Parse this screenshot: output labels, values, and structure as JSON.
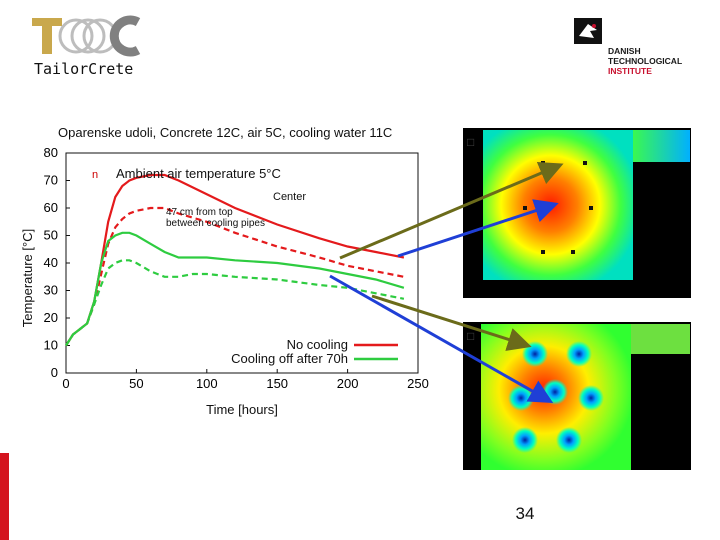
{
  "logos": {
    "left_brand": "TailorCrete",
    "right_lines": [
      "DANISH",
      "TECHNOLOGICAL",
      "INSTITUTE"
    ]
  },
  "page_number": "34",
  "colors": {
    "no_cooling": "#e41a1c",
    "cooling_off": "#2ecc40",
    "arrow_olive": "#6b6b1a",
    "arrow_blue": "#1f3fd6",
    "accent_bar": "#d4141e"
  },
  "chart_data": {
    "type": "line",
    "title": "Oparenske udoli, Concrete 12C, air 5C, cooling water 11C",
    "xlabel": "Time [hours]",
    "ylabel": "Temperature [°C]",
    "xlim": [
      0,
      250
    ],
    "ylim": [
      0,
      80
    ],
    "xticks": [
      0,
      50,
      100,
      150,
      200,
      250
    ],
    "yticks": [
      0,
      10,
      20,
      30,
      40,
      50,
      60,
      70,
      80
    ],
    "annotations": {
      "ambient": "Ambient air temperature 5°C",
      "ambient_marker": "n",
      "center": "Center",
      "pipes": "47 cm from top\nbetween cooling pipes"
    },
    "legend": {
      "position": "bottom-right",
      "entries": [
        "No cooling",
        "Cooling off after 70h"
      ]
    },
    "series": [
      {
        "name": "No cooling – Center",
        "color": "#e41a1c",
        "dash": false,
        "x": [
          0,
          5,
          10,
          15,
          20,
          25,
          30,
          35,
          40,
          45,
          50,
          60,
          70,
          80,
          100,
          120,
          150,
          180,
          200,
          220,
          240
        ],
        "y": [
          10,
          14,
          16,
          18,
          26,
          40,
          55,
          64,
          68,
          70,
          71,
          72,
          72,
          70,
          65,
          60,
          54,
          49,
          46,
          44,
          42
        ]
      },
      {
        "name": "No cooling – 47 cm from top between cooling pipes",
        "color": "#e41a1c",
        "dash": true,
        "x": [
          0,
          5,
          10,
          15,
          20,
          25,
          30,
          35,
          40,
          45,
          50,
          60,
          70,
          80,
          100,
          120,
          150,
          180,
          200,
          220,
          240
        ],
        "y": [
          10,
          14,
          16,
          18,
          25,
          36,
          47,
          53,
          56,
          58,
          59,
          60,
          60,
          58,
          55,
          51,
          46,
          42,
          39,
          37,
          35
        ]
      },
      {
        "name": "Cooling off after 70h – Center",
        "color": "#2ecc40",
        "dash": false,
        "x": [
          0,
          5,
          10,
          15,
          20,
          25,
          30,
          35,
          40,
          45,
          50,
          60,
          70,
          80,
          90,
          100,
          120,
          150,
          180,
          200,
          220,
          240
        ],
        "y": [
          10,
          14,
          16,
          18,
          26,
          40,
          48,
          50,
          51,
          51,
          50,
          47,
          44,
          42,
          42,
          42,
          41,
          40,
          38,
          36,
          34,
          31
        ]
      },
      {
        "name": "Cooling off after 70h – 47 cm from top between cooling pipes",
        "color": "#2ecc40",
        "dash": true,
        "x": [
          0,
          5,
          10,
          15,
          20,
          25,
          30,
          35,
          40,
          45,
          50,
          60,
          70,
          80,
          90,
          100,
          120,
          150,
          180,
          200,
          220,
          240
        ],
        "y": [
          10,
          14,
          16,
          18,
          25,
          32,
          38,
          40,
          41,
          41,
          40,
          37,
          35,
          35,
          36,
          36,
          35,
          34,
          32,
          31,
          29,
          27
        ]
      }
    ]
  }
}
